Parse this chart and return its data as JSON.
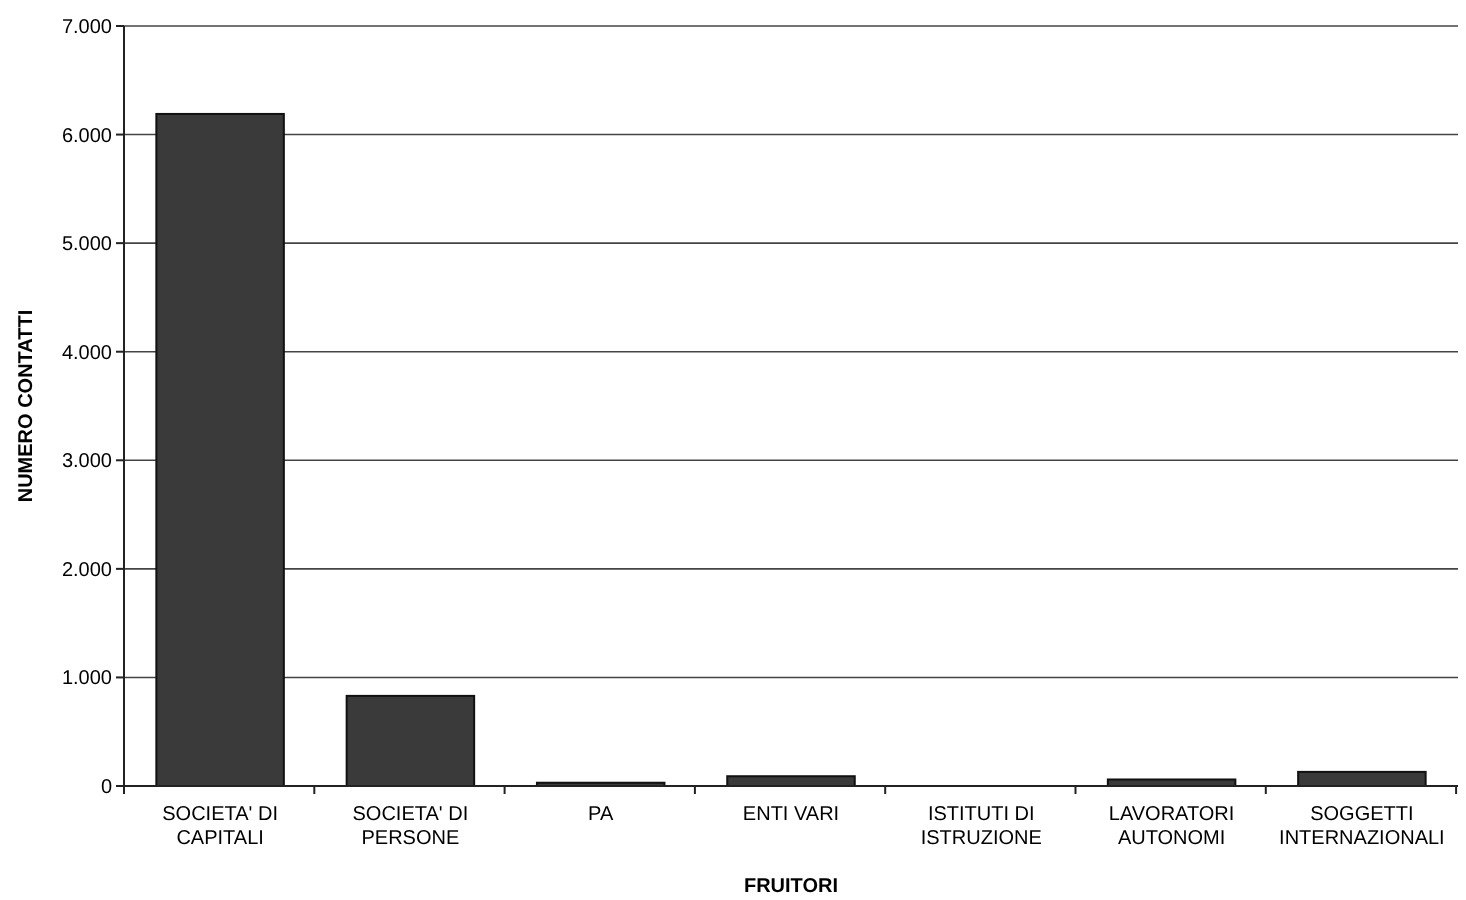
{
  "chart_data": {
    "type": "bar",
    "xlabel": "FRUITORI",
    "ylabel": "NUMERO CONTATTI",
    "categories": [
      "SOCIETA' DI CAPITALI",
      "SOCIETA' DI PERSONE",
      "PA",
      "ENTI VARI",
      "ISTITUTI DI ISTRUZIONE",
      "LAVORATORI AUTONOMI",
      "SOGGETTI INTERNAZIONALI"
    ],
    "values": [
      6190,
      830,
      30,
      90,
      0,
      60,
      130
    ],
    "color": "#3a3a3a",
    "ylim": [
      0,
      7000
    ],
    "yticks": [
      0,
      {
        "value": 1000,
        "label": "1.000"
      },
      {
        "value": 2000,
        "label": "2.000"
      },
      {
        "value": 3000,
        "label": "3.000"
      },
      {
        "value": 4000,
        "label": "4.000"
      },
      {
        "value": 5000,
        "label": "5.000"
      },
      {
        "value": 6000,
        "label": "6.000"
      },
      {
        "value": 7000,
        "label": "7.000"
      }
    ],
    "grid": "y"
  }
}
